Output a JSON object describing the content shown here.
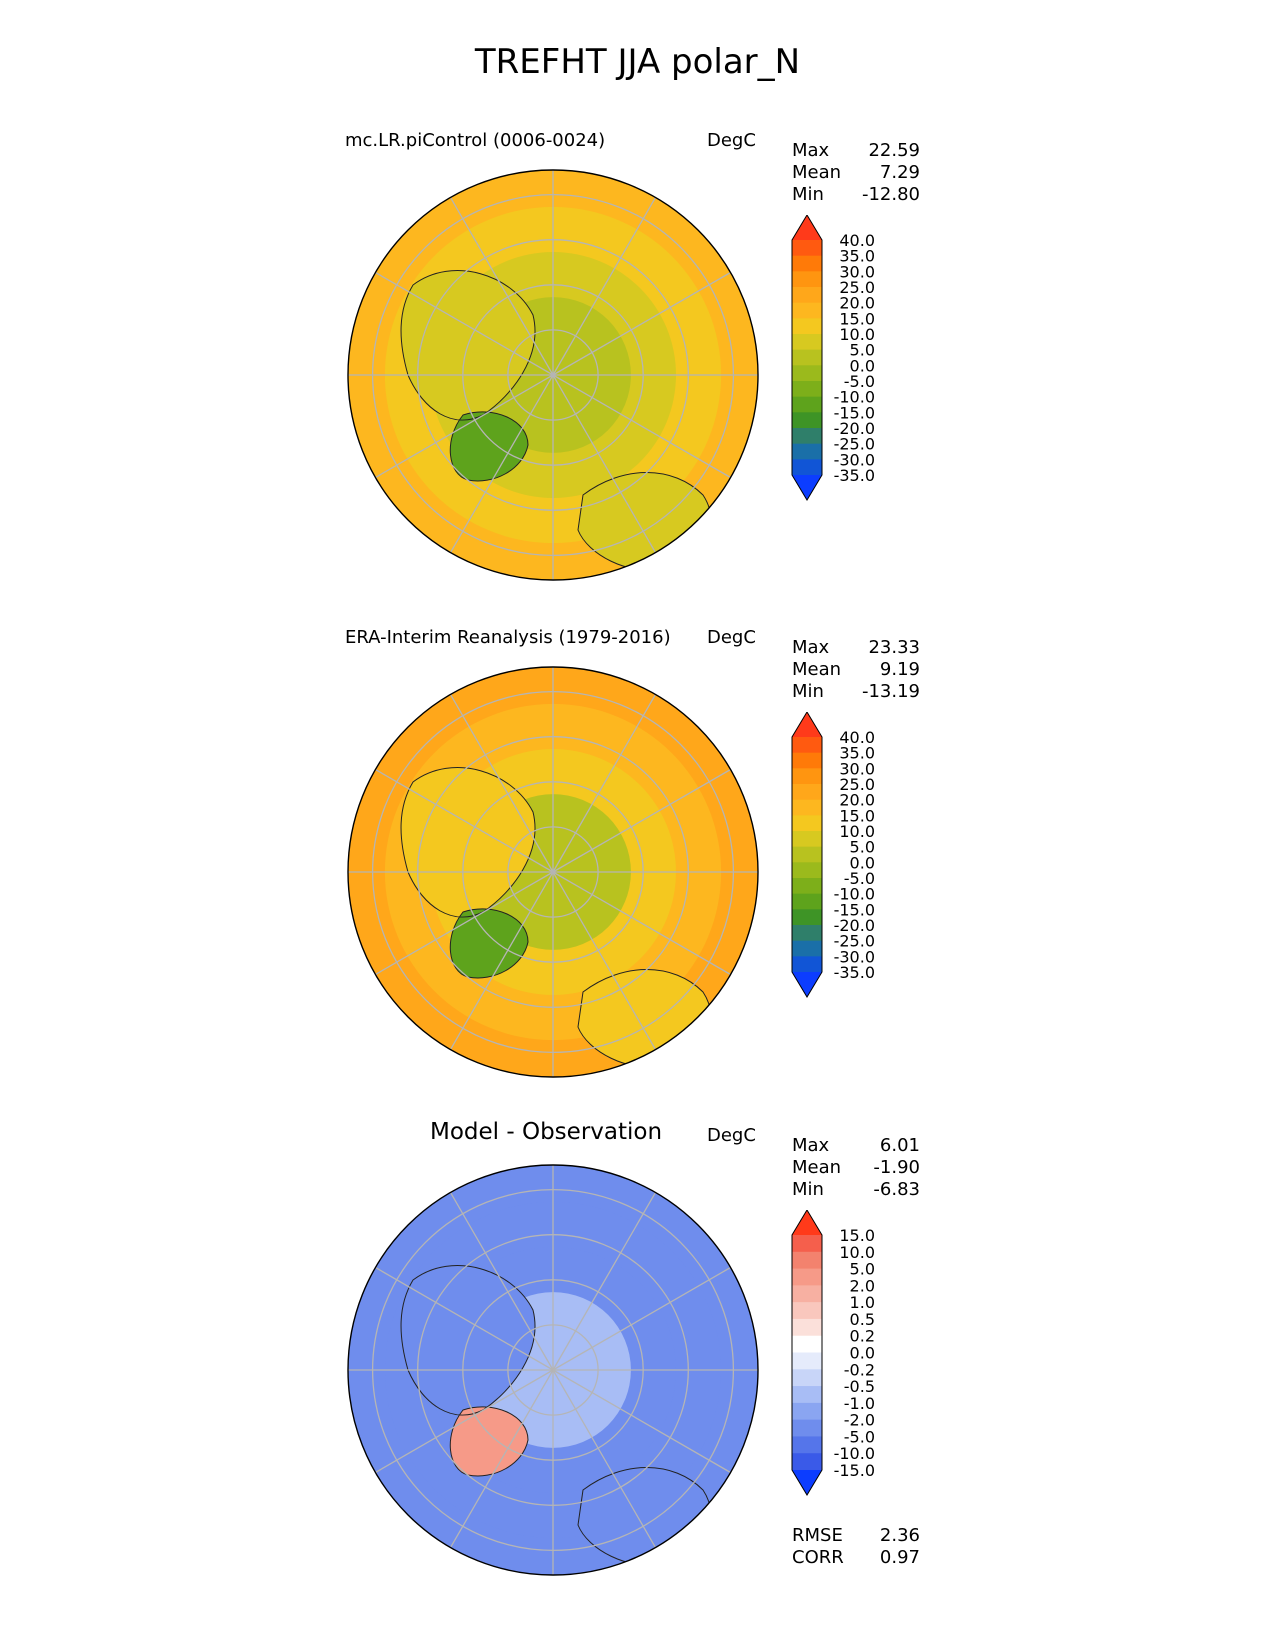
{
  "figure": {
    "title": "TREFHT JJA polar_N"
  },
  "panels": [
    {
      "title": "mc.LR.piControl (0006-0024)",
      "units": "DegC",
      "stats": [
        {
          "name": "Max",
          "value": "22.59"
        },
        {
          "name": "Mean",
          "value": "7.29"
        },
        {
          "name": "Min",
          "value": "-12.80"
        }
      ]
    },
    {
      "title": "ERA-Interim Reanalysis (1979-2016)",
      "units": "DegC",
      "stats": [
        {
          "name": "Max",
          "value": "23.33"
        },
        {
          "name": "Mean",
          "value": "9.19"
        },
        {
          "name": "Min",
          "value": "-13.19"
        }
      ]
    },
    {
      "title": "Model - Observation",
      "units": "DegC",
      "stats": [
        {
          "name": "Max",
          "value": "6.01"
        },
        {
          "name": "Mean",
          "value": "-1.90"
        },
        {
          "name": "Min",
          "value": "-6.83"
        }
      ],
      "metrics": [
        {
          "name": "RMSE",
          "value": "2.36"
        },
        {
          "name": "CORR",
          "value": "0.97"
        }
      ]
    }
  ],
  "chart_data": [
    {
      "type": "heatmap",
      "projection": "north polar stereographic",
      "title": "mc.LR.piControl (0006-0024)",
      "units": "DegC",
      "max": 22.59,
      "mean": 7.29,
      "min": -12.8,
      "colorbar": {
        "ticks": [
          "40.0",
          "35.0",
          "30.0",
          "25.0",
          "20.0",
          "15.0",
          "10.0",
          "5.0",
          "0.0",
          "-5.0",
          "-10.0",
          "-15.0",
          "-20.0",
          "-25.0",
          "-30.0",
          "-35.0"
        ],
        "colors": [
          "#ff3a1a",
          "#ff5a10",
          "#ff7a08",
          "#ff9510",
          "#ffa71a",
          "#fdb71f",
          "#f4c81f",
          "#d7c920",
          "#b8c21f",
          "#9bba1c",
          "#7daf1a",
          "#5ea31c",
          "#3e9426",
          "#2f7f6a",
          "#1a6fa8",
          "#1155d6",
          "#0c3dff"
        ],
        "extend": "both"
      },
      "field_summary": {
        "arctic_ocean": 2,
        "greenland_interior": -11,
        "north_america_land": 9,
        "eurasia_land": 10,
        "north_atlantic_pacific": 13,
        "map_edge_south": 20
      }
    },
    {
      "type": "heatmap",
      "projection": "north polar stereographic",
      "title": "ERA-Interim Reanalysis (1979-2016)",
      "units": "DegC",
      "max": 23.33,
      "mean": 9.19,
      "min": -13.19,
      "colorbar": {
        "ticks": [
          "40.0",
          "35.0",
          "30.0",
          "25.0",
          "20.0",
          "15.0",
          "10.0",
          "5.0",
          "0.0",
          "-5.0",
          "-10.0",
          "-15.0",
          "-20.0",
          "-25.0",
          "-30.0",
          "-35.0"
        ],
        "colors": [
          "#ff3a1a",
          "#ff5a10",
          "#ff7a08",
          "#ff9510",
          "#ffa71a",
          "#fdb71f",
          "#f4c81f",
          "#d7c920",
          "#b8c21f",
          "#9bba1c",
          "#7daf1a",
          "#5ea31c",
          "#3e9426",
          "#2f7f6a",
          "#1a6fa8",
          "#1155d6",
          "#0c3dff"
        ],
        "extend": "both"
      },
      "field_summary": {
        "arctic_ocean": 1,
        "greenland_interior": -12,
        "north_america_land": 12,
        "eurasia_land": 14,
        "north_atlantic_pacific": 16,
        "map_edge_south": 22
      }
    },
    {
      "type": "heatmap",
      "projection": "north polar stereographic",
      "title": "Model - Observation",
      "units": "DegC",
      "max": 6.01,
      "mean": -1.9,
      "min": -6.83,
      "rmse": 2.36,
      "corr": 0.97,
      "colorbar": {
        "ticks": [
          "15.0",
          "10.0",
          "5.0",
          "2.0",
          "1.0",
          "0.5",
          "0.2",
          "0.0",
          "-0.2",
          "-0.5",
          "-1.0",
          "-2.0",
          "-5.0",
          "-10.0",
          "-15.0"
        ],
        "colors": [
          "#ff3a1a",
          "#f55f4c",
          "#f3826e",
          "#f69a88",
          "#f7b0a2",
          "#f9c7bd",
          "#fbe0da",
          "#ffffff",
          "#e5ebfb",
          "#c8d5f8",
          "#a8bdf5",
          "#8aa5f1",
          "#6f8ded",
          "#5575ea",
          "#3a5ae8",
          "#0c3dff"
        ],
        "extend": "both"
      },
      "field_summary": {
        "arctic_ocean": -0.8,
        "greenland_interior": 4,
        "north_america_land": -3,
        "eurasia_land": -3.5,
        "north_atlantic_pacific": -2,
        "map_edge_south": -4
      }
    }
  ]
}
